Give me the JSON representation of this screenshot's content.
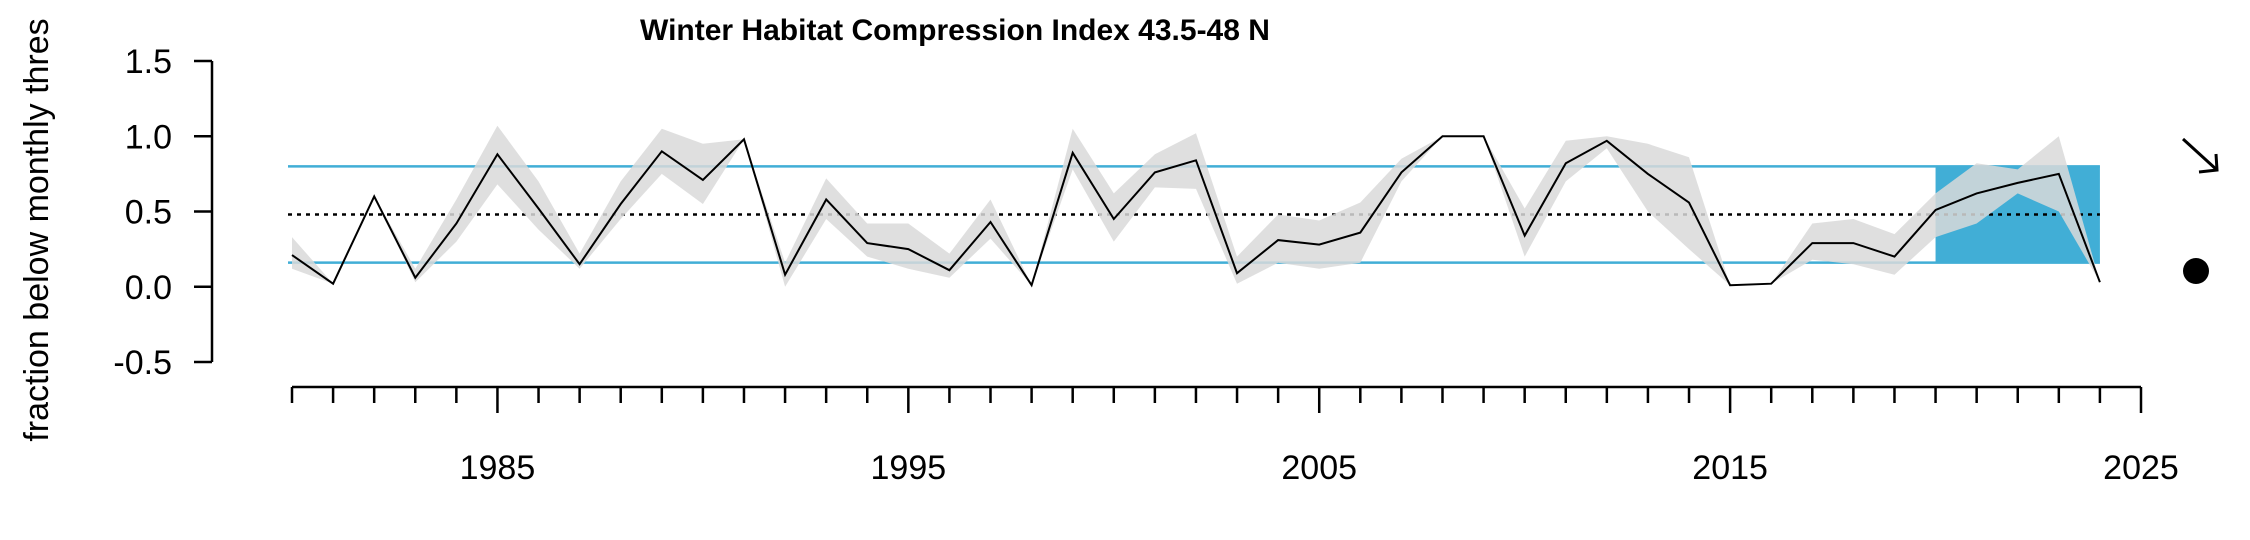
{
  "chart_data": {
    "type": "line",
    "title": "Winter Habitat Compression Index 43.5-48 N",
    "xlabel": "",
    "ylabel": "fraction below monthly thres",
    "xlim": [
      1980,
      2025
    ],
    "ylim": [
      -0.5,
      1.5
    ],
    "x_ticks": [
      {
        "value": 1985,
        "label": "1985"
      },
      {
        "value": 1995,
        "label": "1995"
      },
      {
        "value": 2005,
        "label": "2005"
      },
      {
        "value": 2015,
        "label": "2015"
      },
      {
        "value": 2025,
        "label": "2025"
      }
    ],
    "y_ticks": [
      {
        "value": 1.5,
        "label": "1.5"
      },
      {
        "value": 1.0,
        "label": "1.0"
      },
      {
        "value": 0.5,
        "label": "0.5"
      },
      {
        "value": 0.0,
        "label": "0.0"
      },
      {
        "value": -0.5,
        "label": "-0.5"
      }
    ],
    "grid": false,
    "years": [
      1980,
      1981,
      1982,
      1983,
      1984,
      1985,
      1986,
      1987,
      1988,
      1989,
      1990,
      1991,
      1992,
      1993,
      1994,
      1995,
      1996,
      1997,
      1998,
      1999,
      2000,
      2001,
      2002,
      2003,
      2004,
      2005,
      2006,
      2007,
      2008,
      2009,
      2010,
      2011,
      2012,
      2013,
      2014,
      2015,
      2016,
      2017,
      2018,
      2019,
      2020,
      2021,
      2022,
      2023,
      2024
    ],
    "series": [
      {
        "role": "index",
        "values": [
          0.21,
          0.02,
          0.6,
          0.06,
          0.42,
          0.88,
          0.52,
          0.15,
          0.55,
          0.9,
          0.71,
          0.98,
          0.08,
          0.58,
          0.29,
          0.25,
          0.11,
          0.43,
          0.01,
          0.89,
          0.45,
          0.76,
          0.84,
          0.09,
          0.31,
          0.28,
          0.36,
          0.76,
          1.0,
          1.0,
          0.34,
          0.82,
          0.97,
          0.75,
          0.56,
          0.01,
          0.02,
          0.29,
          0.29,
          0.2,
          0.51,
          0.62,
          0.69,
          0.75,
          0.03
        ],
        "color": "#000000"
      },
      {
        "role": "uncertainty_band",
        "lower": [
          0.12,
          0.02,
          0.6,
          0.03,
          0.3,
          0.68,
          0.38,
          0.12,
          0.45,
          0.75,
          0.55,
          0.98,
          0.0,
          0.45,
          0.2,
          0.12,
          0.06,
          0.32,
          0.01,
          0.78,
          0.3,
          0.66,
          0.65,
          0.02,
          0.16,
          0.12,
          0.16,
          0.7,
          1.0,
          1.0,
          0.2,
          0.7,
          0.92,
          0.5,
          0.25,
          0.01,
          0.02,
          0.18,
          0.15,
          0.08,
          0.33,
          0.42,
          0.62,
          0.5,
          0.03
        ],
        "upper": [
          0.33,
          0.02,
          0.6,
          0.12,
          0.58,
          1.07,
          0.7,
          0.22,
          0.7,
          1.05,
          0.95,
          0.98,
          0.16,
          0.72,
          0.42,
          0.42,
          0.22,
          0.58,
          0.01,
          1.05,
          0.62,
          0.88,
          1.02,
          0.2,
          0.48,
          0.44,
          0.56,
          0.85,
          1.0,
          1.0,
          0.52,
          0.97,
          1.0,
          0.95,
          0.86,
          0.01,
          0.02,
          0.42,
          0.45,
          0.35,
          0.62,
          0.82,
          0.78,
          1.0,
          0.03
        ],
        "color": "#d9d9d9"
      }
    ],
    "reference_lines": [
      {
        "role": "mean",
        "value": 0.48,
        "style": "dotted",
        "color": "#000000"
      },
      {
        "role": "upper_sd",
        "value": 0.8,
        "style": "solid",
        "color": "#41aed6"
      },
      {
        "role": "lower_sd",
        "value": 0.16,
        "style": "solid",
        "color": "#41aed6"
      }
    ],
    "highlight_period": {
      "start": 2020,
      "end": 2024,
      "color": "#41aed6"
    },
    "trend_symbols": {
      "trend": "down-right-arrow",
      "status": "filled-circle"
    }
  }
}
